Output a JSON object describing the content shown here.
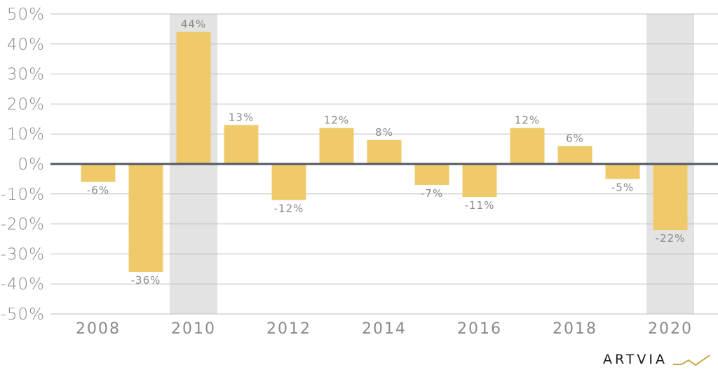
{
  "chart_data": {
    "type": "bar",
    "categories": [
      "2008",
      "2009",
      "2010",
      "2011",
      "2012",
      "2013",
      "2014",
      "2015",
      "2016",
      "2017",
      "2018",
      "2019",
      "2020"
    ],
    "values": [
      -6,
      -36,
      44,
      13,
      -12,
      12,
      8,
      -7,
      -11,
      12,
      6,
      -5,
      -22
    ],
    "data_labels": [
      "-6%",
      "-36%",
      "44%",
      "13%",
      "-12%",
      "12%",
      "8%",
      "-7%",
      "-11%",
      "12%",
      "6%",
      "-5%",
      "-22%"
    ],
    "x_tick_labels": [
      "2008",
      "2010",
      "2012",
      "2014",
      "2016",
      "2018",
      "2020"
    ],
    "y_tick_labels": [
      "50%",
      "40%",
      "30%",
      "20%",
      "10%",
      "0%",
      "-10%",
      "-20%",
      "-30%",
      "-40%",
      "-50%"
    ],
    "ylim": [
      -50,
      50
    ],
    "y_tick_step": 10,
    "highlighted_categories": [
      "2010",
      "2020"
    ],
    "title": "",
    "xlabel": "",
    "ylabel": "",
    "grid": true,
    "bar_color": "#f0c96b",
    "highlight_color": "#e3e3e3",
    "zero_line_color": "#505862"
  },
  "brand": {
    "logo_text": "ARTVIA",
    "accent_color": "#c9a84c"
  }
}
